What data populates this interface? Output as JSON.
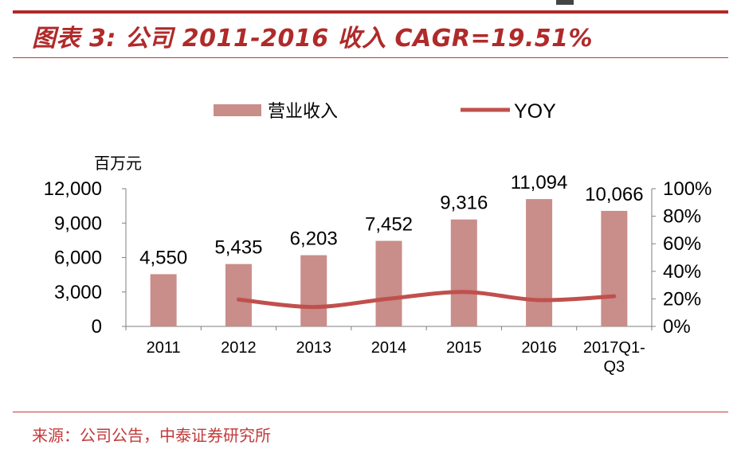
{
  "header": {
    "title": "图表 3: 公司 2011-2016 收入 CAGR=19.51%"
  },
  "footer": {
    "source": "来源：公司公告，中泰证券研究所"
  },
  "colors": {
    "accent": "#b02a2a",
    "bar": "#c98d8a",
    "line": "#c0504d",
    "text": "#000000"
  },
  "chart_data": {
    "type": "bar",
    "categories": [
      "2011",
      "2012",
      "2013",
      "2014",
      "2015",
      "2016",
      "2017Q1-Q3"
    ],
    "category_label_lines": [
      [
        "2011"
      ],
      [
        "2012"
      ],
      [
        "2013"
      ],
      [
        "2014"
      ],
      [
        "2015"
      ],
      [
        "2016"
      ],
      [
        "2017Q1-",
        "Q3"
      ]
    ],
    "series": [
      {
        "name": "营业收入",
        "kind": "bar",
        "axis": "left",
        "values": [
          4550,
          5435,
          6203,
          7452,
          9316,
          11094,
          10066
        ],
        "data_labels": [
          "4,550",
          "5,435",
          "6,203",
          "7,452",
          "9,316",
          "11,094",
          "10,066"
        ]
      },
      {
        "name": "YOY",
        "kind": "line",
        "axis": "right",
        "values": [
          null,
          19.5,
          14.1,
          20.1,
          25.0,
          19.1,
          21.9
        ]
      }
    ],
    "ylabel": "百万元",
    "ylim": [
      0,
      12000
    ],
    "yticks": [
      "12,000",
      "9,000",
      "6,000",
      "3,000",
      "0"
    ],
    "ytick_values": [
      12000,
      9000,
      6000,
      3000,
      0
    ],
    "y2lim": [
      0,
      100
    ],
    "y2ticks": [
      "100%",
      "80%",
      "60%",
      "40%",
      "20%",
      "0%"
    ],
    "y2tick_values": [
      100,
      80,
      60,
      40,
      20,
      0
    ],
    "legend_position": "top-center",
    "grid": false
  }
}
